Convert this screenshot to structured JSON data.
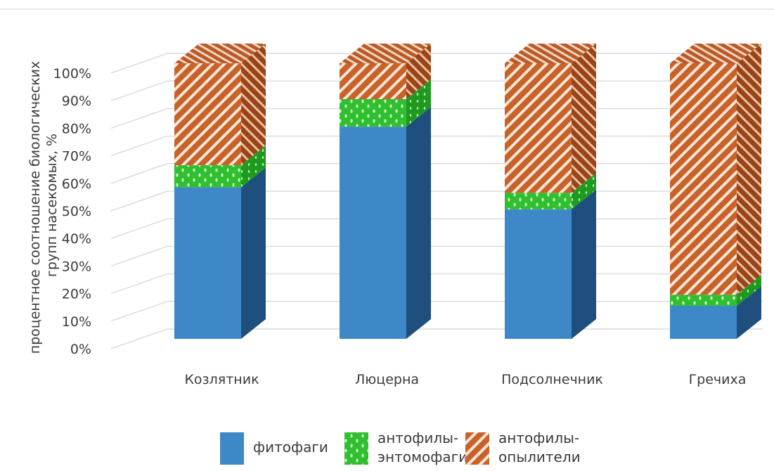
{
  "chart_data": {
    "type": "bar",
    "stacked": true,
    "percent": true,
    "three_d": true,
    "title": "",
    "xlabel": "",
    "ylabel": "процентное соотношение биологических групп насекомых, %",
    "ylabel_lines": [
      "процентное соотношение биологических",
      "групп насекомых, %"
    ],
    "ylim": [
      0,
      100
    ],
    "yticks": [
      "0%",
      "10%",
      "20%",
      "30%",
      "40%",
      "50%",
      "60%",
      "70%",
      "80%",
      "90%",
      "100%"
    ],
    "grid": true,
    "legend_position": "bottom",
    "categories": [
      "Козлятник",
      "Люцерна",
      "Подсолнечник",
      "Гречиха"
    ],
    "series": [
      {
        "name": "фитофаги",
        "legend_lines": [
          "фитофаги"
        ],
        "values": [
          55,
          77,
          47,
          12
        ],
        "color": "#3e88c7",
        "side_color": "#1f4f7d",
        "pattern": "solid"
      },
      {
        "name": "антофилы-энтомофаги",
        "legend_lines": [
          "антофилы-",
          "энтомофаги"
        ],
        "values": [
          8,
          10,
          6,
          4
        ],
        "color": "#2fbf2f",
        "side_color": "#1a8f1a",
        "pattern": "dots"
      },
      {
        "name": "антофилы-опылители",
        "legend_lines": [
          "антофилы-",
          "опылители"
        ],
        "values": [
          37,
          13,
          47,
          84
        ],
        "color": "#c8622a",
        "side_color": "#8f3f16",
        "pattern": "diagonal-stripes"
      }
    ]
  }
}
